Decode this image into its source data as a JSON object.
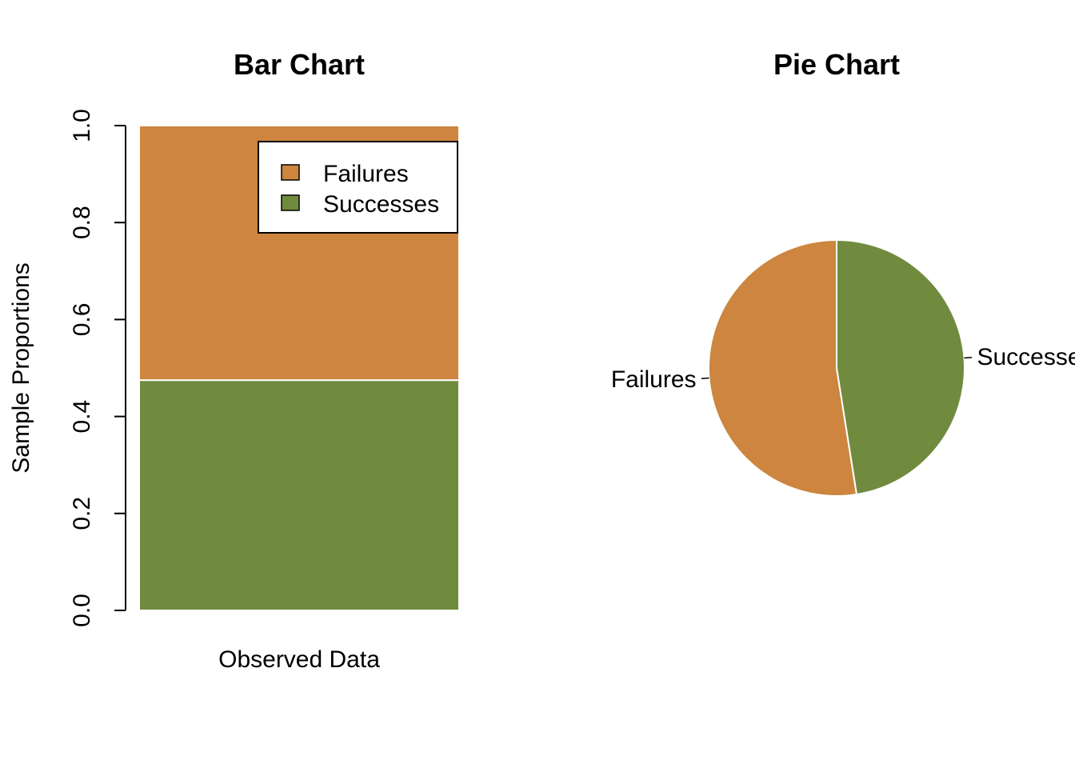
{
  "chart_data": [
    {
      "type": "bar",
      "stacked": true,
      "title": "Bar Chart",
      "xlabel": "Observed Data",
      "ylabel": "Sample Proportions",
      "ylim": [
        0,
        1
      ],
      "yticks": [
        "0.0",
        "0.2",
        "0.4",
        "0.6",
        "0.8",
        "1.0"
      ],
      "categories": [
        ""
      ],
      "series": [
        {
          "name": "Successes",
          "values": [
            0.475
          ],
          "color": "#708B3E"
        },
        {
          "name": "Failures",
          "values": [
            0.525
          ],
          "color": "#CD853F"
        }
      ],
      "legend": {
        "position": "top-right",
        "entries": [
          "Failures",
          "Successes"
        ],
        "colors": [
          "#CD853F",
          "#708B3E"
        ]
      },
      "grid": false
    },
    {
      "type": "pie",
      "title": "Pie Chart",
      "slices": [
        {
          "label": "Failures",
          "value": 0.525,
          "color": "#CD853F"
        },
        {
          "label": "Successes",
          "value": 0.475,
          "color": "#708B3E"
        }
      ]
    }
  ]
}
